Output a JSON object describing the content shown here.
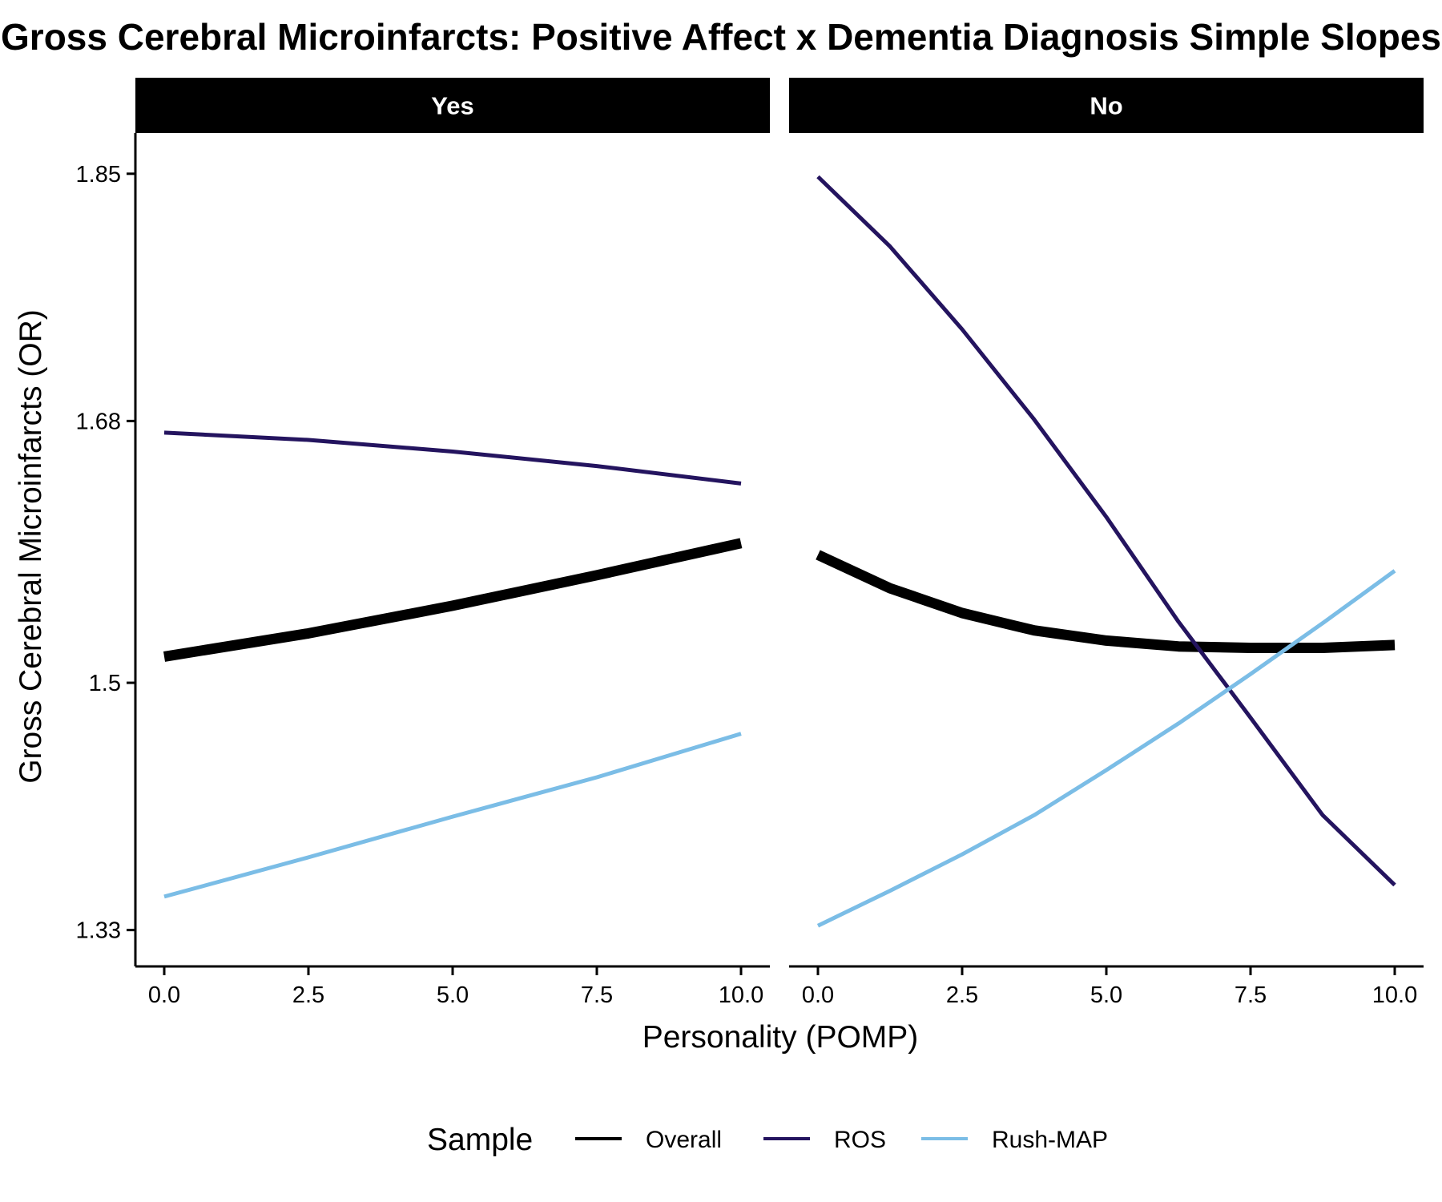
{
  "chart_data": {
    "type": "line",
    "title": "Gross Cerebral Microinfarcts: Positive Affect x Dementia Diagnosis Simple Slopes",
    "xlabel": "Personality (POMP)",
    "ylabel": "Gross Cerebral Microinfarcts (OR)",
    "xlim": [
      -0.5,
      10.5
    ],
    "ylim": [
      1.305,
      1.878
    ],
    "x_ticks": [
      0,
      2.5,
      5,
      7.5,
      10
    ],
    "x_tick_labels": [
      "0.0",
      "2.5",
      "5.0",
      "7.5",
      "10.0"
    ],
    "y_ticks": [
      1.33,
      1.5,
      1.68,
      1.85
    ],
    "y_tick_labels": [
      "1.33",
      "1.5",
      "1.68",
      "1.85"
    ],
    "legend": {
      "title": "Sample",
      "position": "bottom",
      "entries": [
        "Overall",
        "ROS",
        "Rush-MAP"
      ]
    },
    "colors": {
      "Overall": "#000000",
      "ROS": "#24145f",
      "Rush-MAP": "#7bbde6"
    },
    "panels": [
      {
        "label": "Yes",
        "series": [
          {
            "name": "Overall",
            "x": [
              0,
              2.5,
              5,
              7.5,
              10
            ],
            "y": [
              1.518,
              1.534,
              1.553,
              1.574,
              1.596
            ]
          },
          {
            "name": "ROS",
            "x": [
              0,
              2.5,
              5,
              7.5,
              10
            ],
            "y": [
              1.672,
              1.667,
              1.659,
              1.649,
              1.637
            ]
          },
          {
            "name": "Rush-MAP",
            "x": [
              0,
              2.5,
              5,
              7.5,
              10
            ],
            "y": [
              1.353,
              1.38,
              1.408,
              1.435,
              1.465
            ]
          }
        ]
      },
      {
        "label": "No",
        "series": [
          {
            "name": "Overall",
            "x": [
              0,
              1.25,
              2.5,
              3.75,
              5,
              6.25,
              7.5,
              8.75,
              10
            ],
            "y": [
              1.588,
              1.565,
              1.548,
              1.536,
              1.529,
              1.525,
              1.524,
              1.524,
              1.526
            ]
          },
          {
            "name": "ROS",
            "x": [
              0,
              1.25,
              2.5,
              3.75,
              5,
              6.25,
              7.5,
              8.75,
              10
            ],
            "y": [
              1.848,
              1.8,
              1.743,
              1.681,
              1.614,
              1.542,
              1.476,
              1.409,
              1.361
            ]
          },
          {
            "name": "Rush-MAP",
            "x": [
              0,
              1.25,
              2.5,
              3.75,
              5,
              6.25,
              7.5,
              8.75,
              10
            ],
            "y": [
              1.333,
              1.357,
              1.382,
              1.409,
              1.44,
              1.472,
              1.506,
              1.541,
              1.577
            ]
          }
        ]
      }
    ]
  }
}
